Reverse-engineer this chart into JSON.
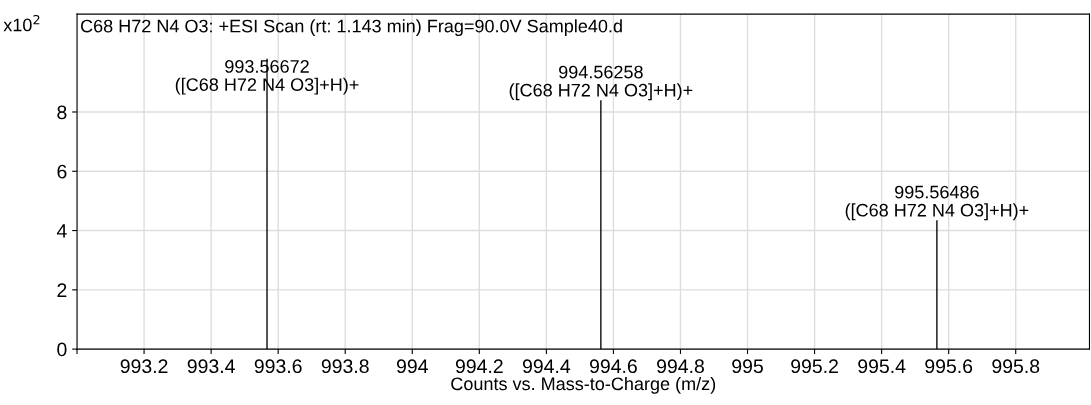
{
  "chart_data": {
    "type": "bar",
    "title": "C68 H72 N4 O3: +ESI Scan (rt: 1.143 min) Frag=90.0V Sample40.d",
    "xlabel": "Counts vs. Mass-to-Charge (m/z)",
    "ylabel": "x10$^{2}$",
    "x": [
      993.56672,
      994.56258,
      995.56486
    ],
    "series": [
      {
        "color": "#000000",
        "values": [
          9.8,
          8.4,
          4.35
        ]
      }
    ],
    "annotations": [
      {
        "text": "993.56672\n([C68 H72 N4 O3]+H)+",
        "x": 993.56672,
        "y": 9.8
      },
      {
        "text": "994.56258\n([C68 H72 N4 O3]+H)+",
        "x": 994.56258,
        "y": 8.4
      },
      {
        "text": "995.56486\n([C68 H72 N4 O3]+H)+",
        "x": 995.56486,
        "y": 4.35
      }
    ],
    "xlim": [
      993.0,
      996.02
    ],
    "ylim": [
      0,
      11.3
    ],
    "xticks": [
      {
        "value": 993.0,
        "label": null
      },
      993.2,
      993.4,
      993.6,
      993.8,
      994,
      994.2,
      994.4,
      994.6,
      994.8,
      995,
      995.2,
      995.4,
      995.6,
      995.8
    ],
    "yticks": [
      0,
      2,
      4,
      6,
      8
    ],
    "grid": true
  }
}
